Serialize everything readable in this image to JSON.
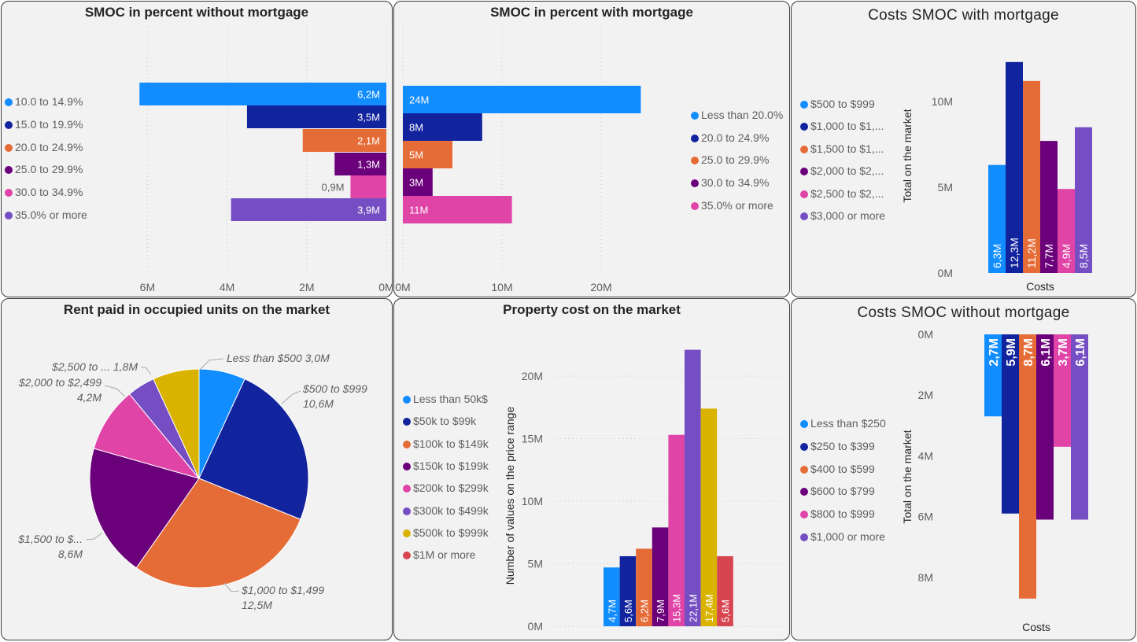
{
  "colors": [
    "#118dff",
    "#12239e",
    "#e66c37",
    "#6b007b",
    "#e044a7",
    "#744ec2",
    "#d9b300",
    "#d64550"
  ],
  "panels": {
    "p1": {
      "title": "SMOC in percent without mortgage",
      "legend": [
        "10.0 to 14.9%",
        "15.0 to 19.9%",
        "20.0 to 24.9%",
        "25.0 to 29.9%",
        "30.0 to 34.9%",
        "35.0% or more"
      ]
    },
    "p2": {
      "title": "SMOC in percent with mortgage",
      "legend": [
        "Less than 20.0%",
        "20.0 to 24.9%",
        "25.0 to 29.9%",
        "30.0 to 34.9%",
        "35.0% or more"
      ]
    },
    "p3": {
      "title": "Costs SMOC with mortgage",
      "legend": [
        "$500 to $999",
        "$1,000 to $1,...",
        "$1,500 to $1,...",
        "$2,000 to $2,...",
        "$2,500 to $2,...",
        "$3,000 or more"
      ]
    },
    "p4": {
      "title": "Rent paid in occupied units on the market"
    },
    "p5": {
      "title": "Property cost on the market",
      "legend": [
        "Less than 50k$",
        "$50k to $99k",
        "$100k to $149k",
        "$150k to $199k",
        "$200k to $299k",
        "$300k to $499k",
        "$500k to $999k",
        "$1M or more"
      ]
    },
    "p6": {
      "title": "Costs SMOC without mortgage",
      "legend": [
        "Less than $250",
        "$250 to $399",
        "$400 to $599",
        "$600 to $799",
        "$800 to $999",
        "$1,000 or more"
      ]
    }
  },
  "chart_data": [
    {
      "id": "p1",
      "type": "bar",
      "orientation": "horizontal",
      "direction": "reversed",
      "title": "SMOC in percent without mortgage",
      "categories": [
        "10.0 to 14.9%",
        "15.0 to 19.9%",
        "20.0 to 24.9%",
        "25.0 to 29.9%",
        "30.0 to 34.9%",
        "35.0% or more"
      ],
      "values": [
        6.2,
        3.5,
        2.1,
        1.3,
        0.9,
        3.9
      ],
      "labels": [
        "6,2M",
        "3,5M",
        "2,1M",
        "1,3M",
        "0,9M",
        "3,9M"
      ],
      "ticks": [
        "6M",
        "4M",
        "2M",
        "0M"
      ],
      "xlim": [
        0,
        6.2
      ],
      "grid": true,
      "legend": "left"
    },
    {
      "id": "p2",
      "type": "bar",
      "orientation": "horizontal",
      "title": "SMOC in percent with mortgage",
      "categories": [
        "Less than 20.0%",
        "20.0 to 24.9%",
        "25.0 to 29.9%",
        "30.0 to 34.9%",
        "35.0% or more"
      ],
      "values": [
        24,
        8,
        5,
        3,
        11
      ],
      "labels": [
        "24M",
        "8M",
        "5M",
        "3M",
        "11M"
      ],
      "ticks": [
        "0M",
        "10M",
        "20M"
      ],
      "xlim": [
        0,
        24
      ],
      "grid": true,
      "legend": "right"
    },
    {
      "id": "p3",
      "type": "bar",
      "orientation": "vertical",
      "title": "Costs SMOC with mortgage",
      "xlabel": "Costs",
      "ylabel": "Total on the market",
      "categories": [
        "$500 to $999",
        "$1,000 to $1,...",
        "$1,500 to $1,...",
        "$2,000 to $2,...",
        "$2,500 to $2,...",
        "$3,000 or more"
      ],
      "values": [
        6.3,
        12.3,
        11.2,
        7.7,
        4.9,
        8.5
      ],
      "labels": [
        "6,3M",
        "12,3M",
        "11,2M",
        "7,7M",
        "4,9M",
        "8,5M"
      ],
      "ticks": [
        "10M",
        "5M",
        "0M"
      ],
      "ylim": [
        0,
        12.3
      ],
      "grid": false,
      "legend": "left"
    },
    {
      "id": "p4",
      "type": "pie",
      "title": "Rent paid in occupied units on the market",
      "slices": [
        {
          "name": "Less than $500",
          "value": 3.0,
          "label": "3,0M"
        },
        {
          "name": "$500 to $999",
          "value": 10.6,
          "label": "10,6M"
        },
        {
          "name": "$1,000 to $1,499",
          "value": 12.5,
          "label": "12,5M"
        },
        {
          "name": "$1,500 to $...",
          "value": 8.6,
          "label": "8,6M"
        },
        {
          "name": "$2,000 to $2,499",
          "value": 4.2,
          "label": "4,2M"
        },
        {
          "name": "$2,500 to ...",
          "value": 1.8,
          "label": "1,8M"
        },
        {
          "name": "",
          "value": 3.0,
          "label": ""
        }
      ]
    },
    {
      "id": "p5",
      "type": "bar",
      "orientation": "vertical",
      "title": "Property cost on the market",
      "ylabel": "Number of values on the price range",
      "categories": [
        "Less than 50k$",
        "$50k to $99k",
        "$100k to $149k",
        "$150k to $199k",
        "$200k to $299k",
        "$300k to $499k",
        "$500k to $999k",
        "$1M or more"
      ],
      "values": [
        4.7,
        5.6,
        6.2,
        7.9,
        15.3,
        22.1,
        17.4,
        5.6
      ],
      "labels": [
        "4,7M",
        "5,6M",
        "6,2M",
        "7,9M",
        "15,3M",
        "22,1M",
        "17,4M",
        "5,6M"
      ],
      "ticks": [
        "20M",
        "15M",
        "10M",
        "5M",
        "0M"
      ],
      "ylim": [
        0,
        22.1
      ],
      "grid": true,
      "legend": "left"
    },
    {
      "id": "p6",
      "type": "bar",
      "orientation": "vertical",
      "direction": "reversed",
      "title": "Costs SMOC without mortgage",
      "xlabel": "Costs",
      "ylabel": "Total on the market",
      "categories": [
        "Less than $250",
        "$250 to $399",
        "$400 to $599",
        "$600 to $799",
        "$800 to $999",
        "$1,000 or more"
      ],
      "values": [
        2.7,
        5.9,
        8.7,
        6.1,
        3.7,
        6.1
      ],
      "labels": [
        "2,7M",
        "5,9M",
        "8,7M",
        "6,1M",
        "3,7M",
        "6,1M"
      ],
      "ticks": [
        "0M",
        "2M",
        "4M",
        "6M",
        "8M"
      ],
      "ylim": [
        0,
        8.7
      ],
      "grid": false,
      "legend": "left"
    }
  ]
}
